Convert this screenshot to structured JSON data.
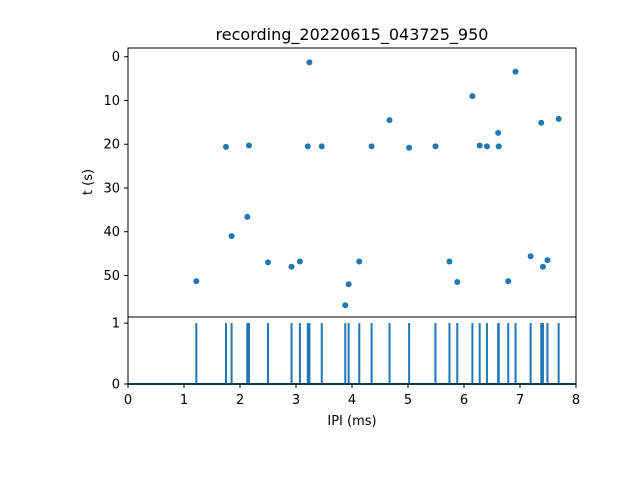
{
  "chart_data": [
    {
      "type": "scatter",
      "title": "recording_20220615_043725_950",
      "xlabel": "",
      "ylabel": "t (s)",
      "xlim": [
        0,
        8
      ],
      "ylim": [
        59.5,
        -2
      ],
      "y_inverted": true,
      "yticks": [
        "0",
        "10",
        "20",
        "30",
        "40",
        "50"
      ],
      "color": "#1f77b4",
      "points": [
        {
          "x": 1.22,
          "y": 51.3
        },
        {
          "x": 1.75,
          "y": 20.6
        },
        {
          "x": 1.85,
          "y": 41.0
        },
        {
          "x": 2.13,
          "y": 36.6
        },
        {
          "x": 2.16,
          "y": 20.3
        },
        {
          "x": 2.5,
          "y": 47.0
        },
        {
          "x": 2.92,
          "y": 48.0
        },
        {
          "x": 3.07,
          "y": 46.8
        },
        {
          "x": 3.21,
          "y": 20.5
        },
        {
          "x": 3.24,
          "y": 1.3
        },
        {
          "x": 3.46,
          "y": 20.5
        },
        {
          "x": 3.88,
          "y": 56.8
        },
        {
          "x": 3.94,
          "y": 52.0
        },
        {
          "x": 4.13,
          "y": 46.8
        },
        {
          "x": 4.35,
          "y": 20.5
        },
        {
          "x": 4.67,
          "y": 14.5
        },
        {
          "x": 5.02,
          "y": 20.8
        },
        {
          "x": 5.49,
          "y": 20.5
        },
        {
          "x": 5.74,
          "y": 46.8
        },
        {
          "x": 5.88,
          "y": 51.5
        },
        {
          "x": 6.15,
          "y": 9.0
        },
        {
          "x": 6.28,
          "y": 20.3
        },
        {
          "x": 6.41,
          "y": 20.5
        },
        {
          "x": 6.61,
          "y": 17.4
        },
        {
          "x": 6.62,
          "y": 20.5
        },
        {
          "x": 6.79,
          "y": 51.3
        },
        {
          "x": 6.92,
          "y": 3.4
        },
        {
          "x": 7.19,
          "y": 45.6
        },
        {
          "x": 7.38,
          "y": 15.1
        },
        {
          "x": 7.41,
          "y": 48.0
        },
        {
          "x": 7.49,
          "y": 46.5
        },
        {
          "x": 7.69,
          "y": 14.2
        }
      ]
    },
    {
      "type": "line",
      "xlabel": "IPI (ms)",
      "ylabel": "",
      "xlim": [
        0,
        8
      ],
      "ylim": [
        0,
        1.1
      ],
      "xticks": [
        "0",
        "1",
        "2",
        "3",
        "4",
        "5",
        "6",
        "7",
        "8"
      ],
      "yticks": [
        "0",
        "1"
      ],
      "color": "#1f77b4",
      "spikes": [
        1.22,
        1.75,
        1.85,
        2.13,
        2.16,
        2.5,
        2.92,
        3.07,
        3.21,
        3.24,
        3.46,
        3.88,
        3.94,
        4.13,
        4.35,
        4.67,
        5.02,
        5.49,
        5.74,
        5.88,
        6.15,
        6.28,
        6.41,
        6.61,
        6.62,
        6.79,
        6.92,
        7.19,
        7.38,
        7.41,
        7.49,
        7.69
      ],
      "spike_value": 1
    }
  ]
}
